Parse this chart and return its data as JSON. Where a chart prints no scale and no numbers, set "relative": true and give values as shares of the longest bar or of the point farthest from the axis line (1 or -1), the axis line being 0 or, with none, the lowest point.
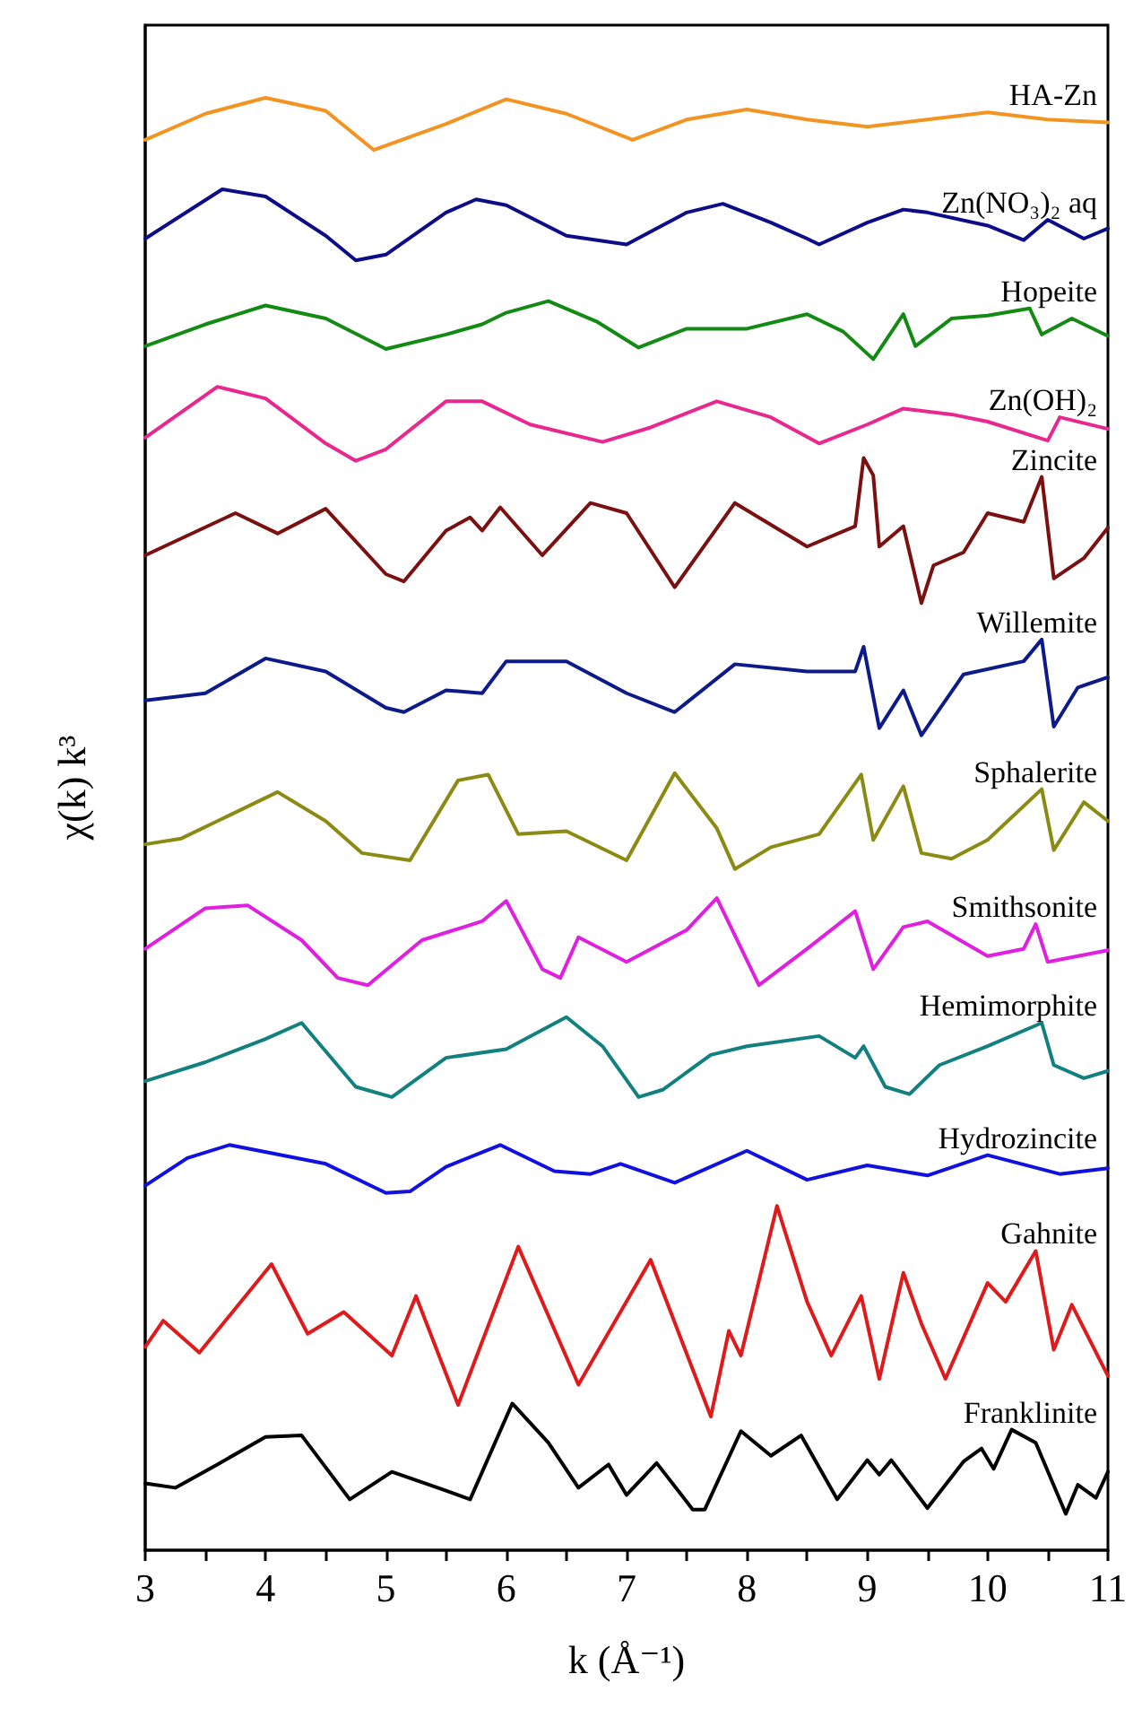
{
  "chart_data": {
    "type": "line",
    "relative": true,
    "xlabel": "k (Å⁻¹)",
    "ylabel": "χ(k) k³",
    "xlim": [
      3,
      11
    ],
    "xticks": [
      3,
      {
        "value": 3.5,
        "label": null
      },
      4,
      {
        "value": 4.5,
        "label": null
      },
      5,
      {
        "value": 5.5,
        "label": null
      },
      6,
      {
        "value": 6.5,
        "label": null
      },
      7,
      {
        "value": 7.5,
        "label": null
      },
      8,
      {
        "value": 8.5,
        "label": null
      },
      9,
      {
        "value": 9.5,
        "label": null
      },
      10,
      {
        "value": 10.5,
        "label": null
      },
      11
    ],
    "tick_labels": "x",
    "marker": "none",
    "line_style": "solid",
    "series": [
      {
        "name": "HA-Zn",
        "color": "#f39422",
        "x": [
          3,
          3.5,
          4,
          4.5,
          4.9,
          5.5,
          6,
          6.5,
          7.05,
          7.5,
          8,
          8.5,
          9,
          9.5,
          10,
          10.5,
          11
        ],
        "values": [
          0.971,
          0.989,
          1.0,
          0.991,
          0.964,
          0.982,
          0.999,
          0.989,
          0.971,
          0.985,
          0.992,
          0.985,
          0.98,
          0.985,
          0.99,
          0.985,
          0.983
        ]
      },
      {
        "name": "Zn(NO₃)₂ aq",
        "color": "#0d0d8a",
        "x": [
          3,
          3.64,
          4,
          4.5,
          4.75,
          5,
          5.5,
          5.75,
          6,
          6.5,
          7,
          7.5,
          7.8,
          8.2,
          8.5,
          8.6,
          9,
          9.3,
          9.5,
          10,
          10.3,
          10.5,
          10.8,
          11
        ],
        "values": [
          0.903,
          0.937,
          0.932,
          0.905,
          0.888,
          0.892,
          0.921,
          0.93,
          0.926,
          0.905,
          0.899,
          0.921,
          0.927,
          0.914,
          0.903,
          0.899,
          0.914,
          0.923,
          0.921,
          0.912,
          0.902,
          0.916,
          0.903,
          0.91
        ]
      },
      {
        "name": "Hopeite",
        "color": "#138a13",
        "x": [
          3,
          3.5,
          4,
          4.5,
          5,
          5.5,
          5.8,
          6,
          6.35,
          6.75,
          7.1,
          7.5,
          8,
          8.5,
          8.8,
          9.05,
          9.3,
          9.4,
          9.7,
          10,
          10.35,
          10.45,
          10.7,
          11
        ],
        "values": [
          0.829,
          0.844,
          0.857,
          0.848,
          0.827,
          0.837,
          0.844,
          0.852,
          0.86,
          0.846,
          0.828,
          0.841,
          0.841,
          0.851,
          0.839,
          0.82,
          0.851,
          0.829,
          0.848,
          0.85,
          0.855,
          0.837,
          0.848,
          0.836
        ]
      },
      {
        "name": "Zn(OH)₂",
        "color": "#e8288f",
        "x": [
          3,
          3.6,
          4,
          4.5,
          4.75,
          5,
          5.5,
          5.8,
          6.2,
          6.8,
          7.2,
          7.75,
          8.2,
          8.6,
          9,
          9.3,
          9.7,
          10,
          10.5,
          10.6,
          11
        ],
        "values": [
          0.766,
          0.801,
          0.793,
          0.762,
          0.75,
          0.758,
          0.791,
          0.791,
          0.775,
          0.763,
          0.773,
          0.791,
          0.78,
          0.762,
          0.775,
          0.786,
          0.782,
          0.777,
          0.764,
          0.78,
          0.772
        ]
      },
      {
        "name": "Zincite",
        "color": "#7b1010",
        "x": [
          3,
          3.75,
          4.1,
          4.5,
          5,
          5.15,
          5.5,
          5.7,
          5.8,
          5.95,
          6.3,
          6.7,
          7,
          7.4,
          7.9,
          8.5,
          8.9,
          8.97,
          9.05,
          9.1,
          9.3,
          9.45,
          9.55,
          9.8,
          10,
          10.3,
          10.45,
          10.55,
          10.8,
          11
        ],
        "values": [
          0.685,
          0.714,
          0.7,
          0.717,
          0.672,
          0.667,
          0.702,
          0.711,
          0.702,
          0.718,
          0.685,
          0.721,
          0.714,
          0.663,
          0.721,
          0.691,
          0.705,
          0.752,
          0.74,
          0.691,
          0.705,
          0.652,
          0.678,
          0.687,
          0.714,
          0.708,
          0.739,
          0.669,
          0.683,
          0.704
        ]
      },
      {
        "name": "Willemite",
        "color": "#0d1a8a",
        "x": [
          3,
          3.5,
          4,
          4.5,
          5,
          5.15,
          5.5,
          5.8,
          6,
          6.5,
          7,
          7.4,
          7.9,
          8.5,
          8.9,
          8.97,
          9.1,
          9.3,
          9.45,
          9.8,
          10.3,
          10.45,
          10.55,
          10.75,
          11
        ],
        "values": [
          0.585,
          0.59,
          0.614,
          0.605,
          0.58,
          0.577,
          0.592,
          0.59,
          0.612,
          0.612,
          0.59,
          0.577,
          0.61,
          0.605,
          0.605,
          0.622,
          0.566,
          0.592,
          0.561,
          0.603,
          0.612,
          0.627,
          0.567,
          0.594,
          0.601
        ]
      },
      {
        "name": "Sphalerite",
        "color": "#8b8b14",
        "x": [
          3,
          3.3,
          3.6,
          4.1,
          4.5,
          4.8,
          5.2,
          5.6,
          5.85,
          6.1,
          6.5,
          7,
          7.4,
          7.75,
          7.9,
          8.2,
          8.6,
          8.95,
          9.05,
          9.3,
          9.45,
          9.7,
          10,
          10.45,
          10.55,
          10.8,
          11
        ],
        "values": [
          0.486,
          0.49,
          0.502,
          0.522,
          0.502,
          0.48,
          0.475,
          0.53,
          0.534,
          0.493,
          0.495,
          0.475,
          0.535,
          0.497,
          0.469,
          0.484,
          0.493,
          0.534,
          0.489,
          0.526,
          0.48,
          0.476,
          0.489,
          0.524,
          0.482,
          0.515,
          0.502
        ]
      },
      {
        "name": "Smithsonite",
        "color": "#e020e0",
        "x": [
          3,
          3.5,
          3.85,
          4.3,
          4.6,
          4.85,
          5.3,
          5.8,
          6,
          6.3,
          6.45,
          6.6,
          7,
          7.5,
          7.75,
          8.1,
          8.5,
          8.9,
          9.05,
          9.3,
          9.5,
          10,
          10.3,
          10.4,
          10.5,
          11
        ],
        "values": [
          0.414,
          0.442,
          0.444,
          0.42,
          0.394,
          0.389,
          0.42,
          0.433,
          0.447,
          0.4,
          0.394,
          0.422,
          0.405,
          0.427,
          0.449,
          0.389,
          0.414,
          0.44,
          0.4,
          0.429,
          0.433,
          0.409,
          0.414,
          0.431,
          0.405,
          0.413
        ]
      },
      {
        "name": "Hemimorphite",
        "color": "#138080",
        "x": [
          3,
          3.5,
          4,
          4.3,
          4.75,
          5.05,
          5.5,
          6,
          6.5,
          6.8,
          7.1,
          7.3,
          7.7,
          8,
          8.6,
          8.9,
          8.97,
          9.15,
          9.35,
          9.6,
          10,
          10.45,
          10.55,
          10.8,
          11
        ],
        "values": [
          0.323,
          0.336,
          0.352,
          0.363,
          0.319,
          0.312,
          0.339,
          0.345,
          0.367,
          0.347,
          0.312,
          0.317,
          0.341,
          0.347,
          0.354,
          0.339,
          0.347,
          0.319,
          0.314,
          0.334,
          0.347,
          0.363,
          0.334,
          0.325,
          0.33
        ]
      },
      {
        "name": "Hydrozincite",
        "color": "#1010e0",
        "x": [
          3,
          3.35,
          3.7,
          4.5,
          5,
          5.2,
          5.5,
          5.95,
          6.4,
          6.7,
          6.95,
          7.4,
          8,
          8.5,
          9,
          9.5,
          10,
          10.6,
          11
        ],
        "values": [
          0.251,
          0.27,
          0.279,
          0.266,
          0.246,
          0.247,
          0.264,
          0.279,
          0.261,
          0.259,
          0.266,
          0.253,
          0.275,
          0.255,
          0.265,
          0.258,
          0.272,
          0.259,
          0.263
        ]
      },
      {
        "name": "Gahnite",
        "color": "#e01a1a",
        "x": [
          3,
          3.15,
          3.45,
          4.05,
          4.35,
          4.65,
          5.05,
          5.25,
          5.6,
          6.1,
          6.6,
          7.2,
          7.7,
          7.85,
          7.95,
          8.25,
          8.5,
          8.7,
          8.95,
          9.1,
          9.3,
          9.45,
          9.65,
          10,
          10.15,
          10.4,
          10.55,
          10.7,
          11
        ],
        "values": [
          0.14,
          0.158,
          0.136,
          0.197,
          0.149,
          0.164,
          0.134,
          0.175,
          0.1,
          0.209,
          0.114,
          0.2,
          0.092,
          0.151,
          0.134,
          0.237,
          0.171,
          0.134,
          0.175,
          0.118,
          0.191,
          0.156,
          0.118,
          0.184,
          0.171,
          0.206,
          0.138,
          0.169,
          0.12
        ]
      },
      {
        "name": "Franklinite",
        "color": "#000000",
        "x": [
          3,
          3.25,
          3.6,
          4,
          4.3,
          4.7,
          5.05,
          5.5,
          5.7,
          6.05,
          6.35,
          6.6,
          6.85,
          7,
          7.25,
          7.55,
          7.65,
          7.95,
          8.2,
          8.45,
          8.75,
          9,
          9.1,
          9.2,
          9.5,
          9.8,
          9.95,
          10.05,
          10.2,
          10.4,
          10.65,
          10.75,
          10.9,
          11
        ],
        "values": [
          0.046,
          0.043,
          0.059,
          0.078,
          0.079,
          0.035,
          0.054,
          0.041,
          0.035,
          0.101,
          0.074,
          0.043,
          0.059,
          0.038,
          0.06,
          0.028,
          0.028,
          0.082,
          0.065,
          0.079,
          0.035,
          0.062,
          0.052,
          0.062,
          0.029,
          0.061,
          0.07,
          0.056,
          0.083,
          0.074,
          0.025,
          0.045,
          0.036,
          0.054
        ]
      }
    ]
  }
}
